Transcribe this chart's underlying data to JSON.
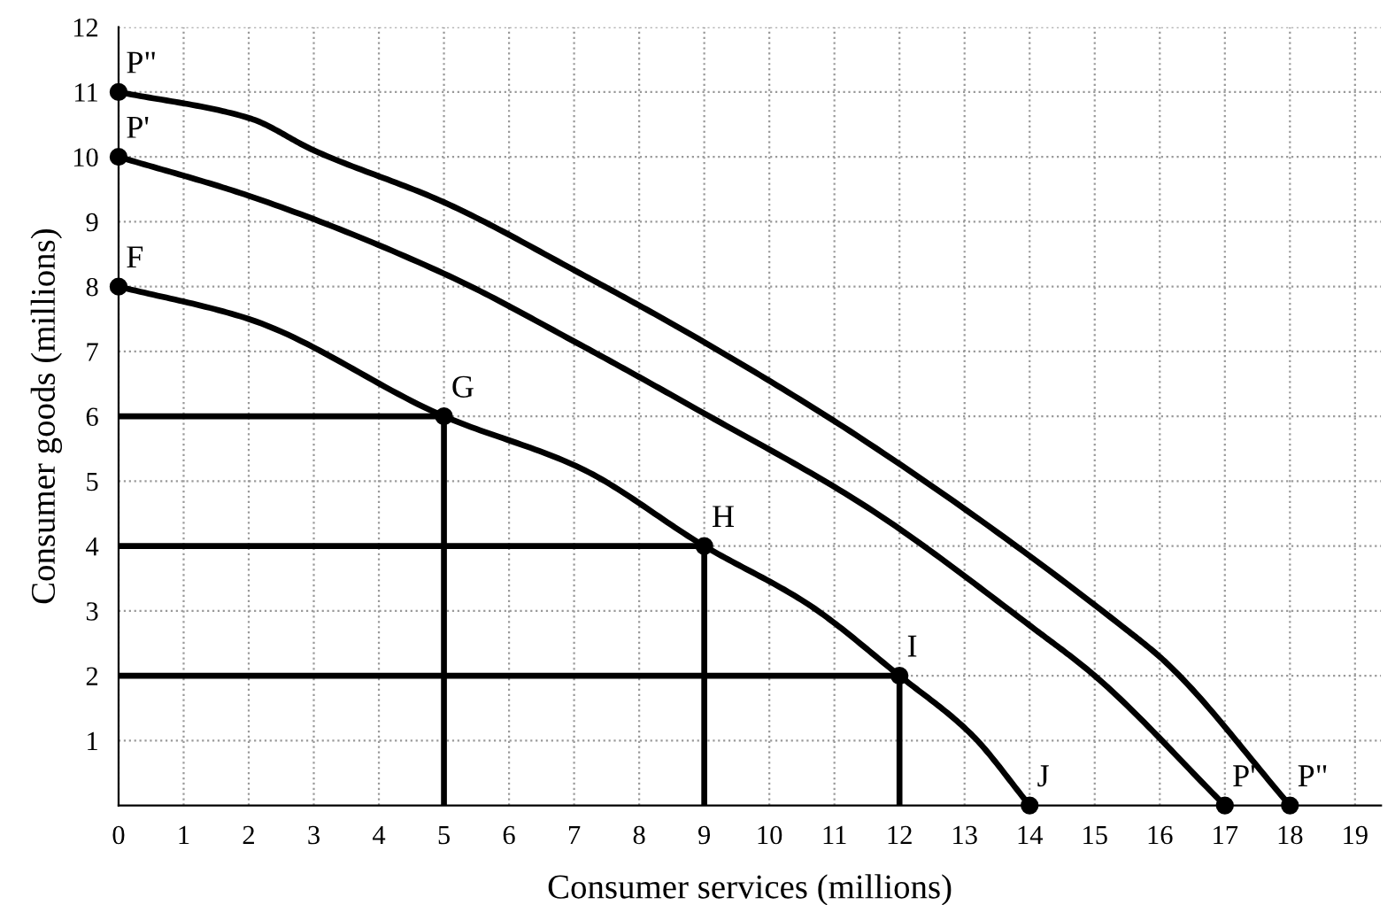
{
  "chart_data": {
    "type": "line",
    "xlabel": "Consumer services (millions)",
    "ylabel": "Consumer goods (millions)",
    "xlim": [
      0,
      19.4
    ],
    "ylim": [
      0,
      12
    ],
    "xticks": [
      0,
      1,
      2,
      3,
      4,
      5,
      6,
      7,
      8,
      9,
      10,
      11,
      12,
      13,
      14,
      15,
      16,
      17,
      18,
      19
    ],
    "yticks": [
      1,
      2,
      3,
      4,
      5,
      6,
      7,
      8,
      9,
      10,
      11,
      12
    ],
    "grid": true,
    "line_style": "solid",
    "series": [
      {
        "color": "#000000",
        "x": [
          0,
          2,
          5,
          7.1,
          9,
          10.6,
          12,
          13.1,
          14
        ],
        "values": [
          8,
          7.5,
          6,
          5.2,
          4,
          3.1,
          2,
          1.1,
          0
        ]
      },
      {
        "color": "#000000",
        "x": [
          0,
          2,
          5,
          7.1,
          8.9,
          11.5,
          14.1,
          15,
          17
        ],
        "values": [
          10,
          9.4,
          8.2,
          7.1,
          6.1,
          4.6,
          2.7,
          2,
          0
        ]
      },
      {
        "color": "#000000",
        "x": [
          0,
          2,
          3,
          5,
          7.1,
          8.9,
          11.5,
          15.5,
          16.1,
          18
        ],
        "values": [
          11,
          10.6,
          10.1,
          9.3,
          8.2,
          7.2,
          5.6,
          2.7,
          2.2,
          0
        ]
      },
      {
        "color": "#000000",
        "x": [
          0,
          5,
          5
        ],
        "values": [
          6,
          6,
          0
        ]
      },
      {
        "color": "#000000",
        "x": [
          0,
          9,
          9
        ],
        "values": [
          4,
          4,
          0
        ]
      },
      {
        "color": "#000000",
        "x": [
          0,
          12,
          12
        ],
        "values": [
          2,
          2,
          0
        ]
      },
      {
        "type": "scatter",
        "marker": "circle",
        "color": "#000000",
        "x": [
          0,
          0,
          0,
          5,
          9,
          12,
          14,
          17,
          18
        ],
        "values": [
          8,
          10,
          11,
          6,
          4,
          2,
          0,
          0,
          0
        ]
      }
    ],
    "annotations": [
      {
        "text": "P\"",
        "x": 0,
        "y": 11
      },
      {
        "text": "P'",
        "x": 0,
        "y": 10
      },
      {
        "text": "F",
        "x": 0,
        "y": 8
      },
      {
        "text": "G",
        "x": 5,
        "y": 6
      },
      {
        "text": "H",
        "x": 9,
        "y": 4
      },
      {
        "text": "I",
        "x": 12,
        "y": 2
      },
      {
        "text": "J",
        "x": 14,
        "y": 0
      },
      {
        "text": "P'",
        "x": 17,
        "y": 0
      },
      {
        "text": "P\"",
        "x": 18,
        "y": 0
      }
    ]
  }
}
